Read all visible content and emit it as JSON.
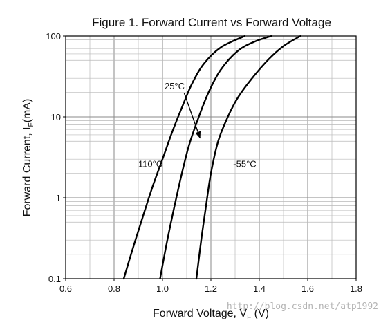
{
  "chart_data": {
    "type": "line",
    "title": "Figure 1. Forward Current vs Forward Voltage",
    "xlabel": "Forward Voltage, V",
    "xlabel_sub": "F",
    "xlabel_unit": " (V)",
    "ylabel": "Forward Current, I",
    "ylabel_sub": "F",
    "ylabel_unit": "(mA)",
    "xlim": [
      0.6,
      1.8
    ],
    "ylim": [
      0.1,
      100
    ],
    "yscale": "log",
    "grid": true,
    "xticks": [
      "0.6",
      "0.8",
      "1.0",
      "1.2",
      "1.4",
      "1.6",
      "1.8"
    ],
    "yticks": [
      "0.1",
      "1",
      "10",
      "100"
    ],
    "series": [
      {
        "name": "110°C",
        "points": [
          [
            0.84,
            0.1
          ],
          [
            0.88,
            0.25
          ],
          [
            0.92,
            0.6
          ],
          [
            0.96,
            1.4
          ],
          [
            1.0,
            3.0
          ],
          [
            1.04,
            6.5
          ],
          [
            1.08,
            13
          ],
          [
            1.12,
            25
          ],
          [
            1.17,
            45
          ],
          [
            1.24,
            72
          ],
          [
            1.34,
            100
          ]
        ]
      },
      {
        "name": "25°C",
        "points": [
          [
            0.99,
            0.1
          ],
          [
            1.02,
            0.3
          ],
          [
            1.05,
            0.8
          ],
          [
            1.08,
            2.0
          ],
          [
            1.11,
            4.5
          ],
          [
            1.15,
            10
          ],
          [
            1.19,
            20
          ],
          [
            1.24,
            38
          ],
          [
            1.31,
            65
          ],
          [
            1.38,
            85
          ],
          [
            1.45,
            100
          ]
        ]
      },
      {
        "name": "-55°C",
        "points": [
          [
            1.14,
            0.1
          ],
          [
            1.16,
            0.3
          ],
          [
            1.18,
            0.8
          ],
          [
            1.2,
            2.0
          ],
          [
            1.23,
            5.0
          ],
          [
            1.27,
            10
          ],
          [
            1.31,
            17
          ],
          [
            1.37,
            30
          ],
          [
            1.44,
            52
          ],
          [
            1.5,
            75
          ],
          [
            1.57,
            100
          ]
        ]
      }
    ],
    "annotations": [
      {
        "text": "25°C",
        "x": 1.05,
        "y": 22,
        "arrow_to": [
          1.155,
          5.5
        ]
      },
      {
        "text": "110°C",
        "x": 0.95,
        "y": 2.4
      },
      {
        "text": "-55°C",
        "x": 1.34,
        "y": 2.4
      }
    ]
  },
  "watermark": "http://blog.csdn.net/atp1992"
}
